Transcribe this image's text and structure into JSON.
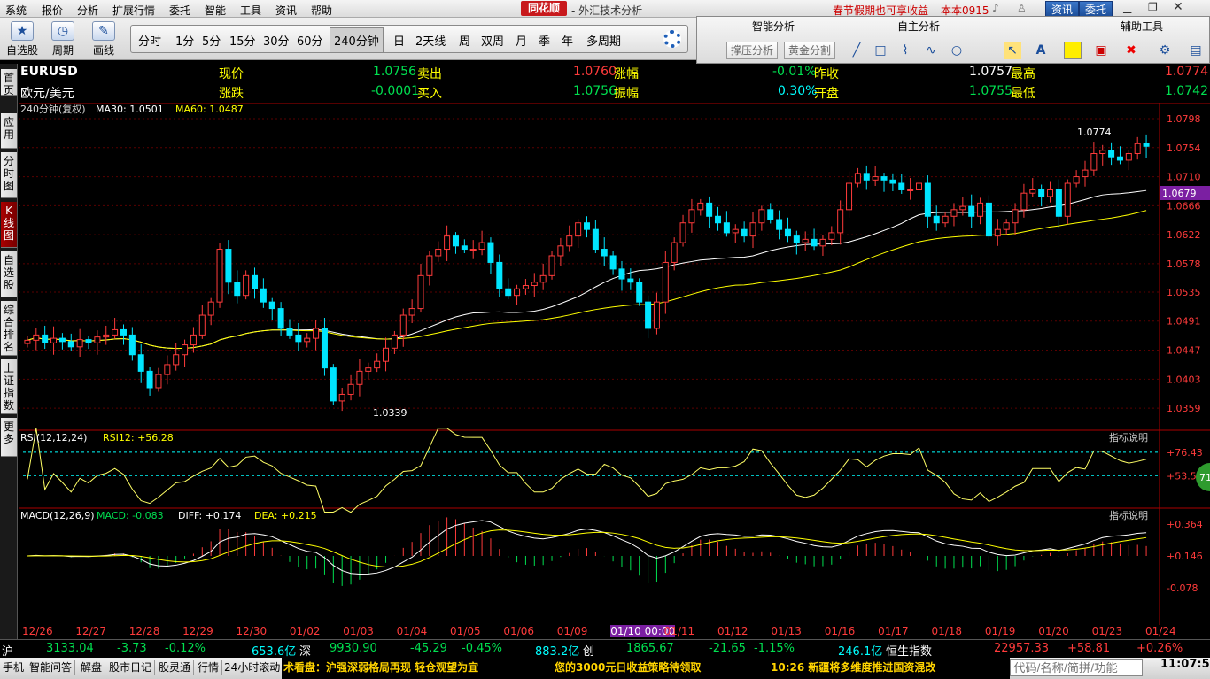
{
  "menu": [
    "系统",
    "报价",
    "分析",
    "扩展行情",
    "委托",
    "智能",
    "工具",
    "资讯",
    "帮助"
  ],
  "brand": "同花顺",
  "window_title": "- 外汇技术分析",
  "notice": "春节假期也可享收益",
  "version": "本本0915",
  "top_buttons": {
    "news": "资讯",
    "trade": "委托"
  },
  "tools": {
    "select_stock": "自选股",
    "cycle": "周期",
    "draw": "画线"
  },
  "periods": [
    "分时",
    "1分",
    "5分",
    "15分",
    "30分",
    "60分",
    "240分钟",
    "日",
    "2天线",
    "周",
    "双周",
    "月",
    "季",
    "年",
    "多周期"
  ],
  "selected_period": "240分钟",
  "panel": {
    "smart": "智能分析",
    "self": "自主分析",
    "aux": "辅助工具",
    "btn_pressure": "撑压分析",
    "btn_gold": "黄金分割"
  },
  "sidebar": [
    "首页",
    "应用",
    "分时图",
    "K线图",
    "自选股",
    "综合排名",
    "上证指数",
    "更多"
  ],
  "quote": {
    "symbol": "EURUSD",
    "name": "欧元/美元",
    "now_label": "现价",
    "now": "1.0756",
    "sell_label": "卖出",
    "sell": "1.0760",
    "chgpct_label": "涨幅",
    "chgpct": "-0.01%",
    "prevclose_label": "昨收",
    "prevclose": "1.0757",
    "high_label": "最高",
    "high": "1.0774",
    "chg_label": "涨跌",
    "chg": "-0.0001",
    "buy_label": "买入",
    "buy": "1.0756",
    "amp_label": "振幅",
    "amp": "0.30%",
    "open_label": "开盘",
    "open": "1.0755",
    "low_label": "最低",
    "low": "1.0742"
  },
  "ma_line": {
    "period": "240分钟(复权)",
    "ma30": "MA30: 1.0501",
    "ma60": "MA60: 1.0487"
  },
  "rsi_line": {
    "label": "RSI(12,12,24)",
    "value": "RSI12: +56.28",
    "explain": "指标说明"
  },
  "macd_line": {
    "label": "MACD(12,26,9)",
    "macd": "MACD: -0.083",
    "diff": "DIFF: +0.174",
    "dea": "DEA: +0.215",
    "explain": "指标说明"
  },
  "price_axis": [
    "1.0798",
    "1.0754",
    "1.0710",
    "1.0666",
    "1.0622",
    "1.0578",
    "1.0535",
    "1.0491",
    "1.0447",
    "1.0403",
    "1.0359"
  ],
  "price_tag": "1.0679",
  "high_mark": "1.0774",
  "low_mark": "1.0339",
  "rsi_axis": [
    "+76.43",
    "+53.54"
  ],
  "macd_axis": [
    "+0.364",
    "+0.146",
    "-0.078"
  ],
  "rsi_badge": "71",
  "dates": [
    "12/26",
    "12/27",
    "12/28",
    "12/29",
    "12/30",
    "01/02",
    "01/03",
    "01/04",
    "01/05",
    "01/06",
    "01/09",
    "01/10 00:00",
    "01/11",
    "01/12",
    "01/13",
    "01/16",
    "01/17",
    "01/18",
    "01/19",
    "01/20",
    "01/23",
    "01/24"
  ],
  "status": [
    {
      "t": "沪",
      "c": "white"
    },
    {
      "t": "3133.04",
      "c": "green"
    },
    {
      "t": "-3.73",
      "c": "green"
    },
    {
      "t": "-0.12%",
      "c": "green"
    },
    {
      "t": "653.6亿",
      "c": "cyan"
    },
    {
      "t": "深",
      "c": "white"
    },
    {
      "t": "9930.90",
      "c": "green"
    },
    {
      "t": "-45.29",
      "c": "green"
    },
    {
      "t": "-0.45%",
      "c": "green"
    },
    {
      "t": "883.2亿",
      "c": "cyan"
    },
    {
      "t": "创",
      "c": "white"
    },
    {
      "t": "1865.67",
      "c": "green"
    },
    {
      "t": "-21.65",
      "c": "green"
    },
    {
      "t": "-1.15%",
      "c": "green"
    },
    {
      "t": "246.1亿",
      "c": "cyan"
    },
    {
      "t": "恒生指数",
      "c": "white"
    },
    {
      "t": "22957.33",
      "c": "red"
    },
    {
      "t": "+58.81",
      "c": "red"
    },
    {
      "t": "+0.26%",
      "c": "red"
    }
  ],
  "bottom_tabs": [
    "手机",
    "智能问答",
    "解盘",
    "股市日记",
    "股灵通",
    "行情",
    "24小时滚动"
  ],
  "ticker": [
    "术看盘：沪强深弱格局再现 轻仓观望为宜",
    "您的3000元日收益策略待领取",
    "10:26 新疆将多维度推进国资混改"
  ],
  "search_placeholder": "代码/名称/简拼/功能",
  "clock": "11:07:59",
  "chart_data": {
    "type": "candlestick",
    "title": "EURUSD 240分钟",
    "ylim": [
      1.0339,
      1.0798
    ],
    "candles_note": "approximate 4h OHLC path from 12/26 to 01/24",
    "closes": [
      1.0462,
      1.047,
      1.0458,
      1.0465,
      1.046,
      1.0452,
      1.0463,
      1.0458,
      1.0467,
      1.047,
      1.0478,
      1.047,
      1.044,
      1.0415,
      1.039,
      1.041,
      1.0425,
      1.044,
      1.0455,
      1.047,
      1.05,
      1.052,
      1.06,
      1.055,
      1.053,
      1.056,
      1.054,
      1.052,
      1.051,
      1.048,
      1.047,
      1.046,
      1.0465,
      1.048,
      1.042,
      1.037,
      1.038,
      1.0395,
      1.0415,
      1.042,
      1.043,
      1.045,
      1.047,
      1.05,
      1.051,
      1.056,
      1.059,
      1.06,
      1.062,
      1.0605,
      1.06,
      1.06,
      1.061,
      1.058,
      1.054,
      1.053,
      1.054,
      1.0545,
      1.055,
      1.056,
      1.059,
      1.0605,
      1.062,
      1.064,
      1.063,
      1.06,
      1.059,
      1.057,
      1.0555,
      1.055,
      1.052,
      1.048,
      1.052,
      1.058,
      1.061,
      1.064,
      1.066,
      1.067,
      1.065,
      1.064,
      1.0625,
      1.063,
      1.062,
      1.064,
      1.066,
      1.0645,
      1.063,
      1.062,
      1.061,
      1.0615,
      1.0605,
      1.0615,
      1.0625,
      1.066,
      1.07,
      1.0715,
      1.0705,
      1.071,
      1.0705,
      1.07,
      1.069,
      1.069,
      1.07,
      1.065,
      1.064,
      1.065,
      1.066,
      1.0665,
      1.065,
      1.067,
      1.062,
      1.063,
      1.064,
      1.066,
      1.0685,
      1.069,
      1.068,
      1.069,
      1.065,
      1.07,
      1.071,
      1.072,
      1.0745,
      1.075,
      1.074,
      1.0735,
      1.0745,
      1.076,
      1.0756
    ],
    "ma30_range": [
      1.043,
      1.069
    ],
    "ma60_range": [
      1.045,
      1.0655
    ]
  }
}
